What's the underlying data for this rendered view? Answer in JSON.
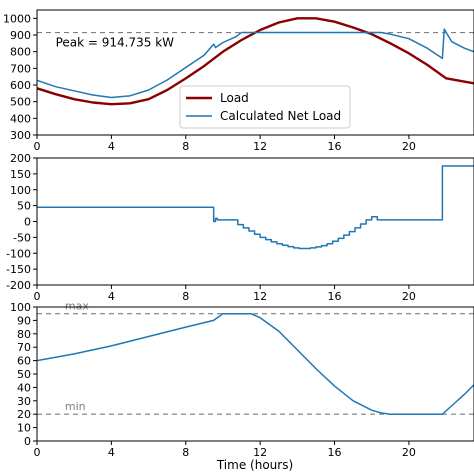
{
  "chart_data": [
    {
      "type": "line",
      "xlim": [
        0,
        23.5
      ],
      "ylim": [
        300,
        1050
      ],
      "xticks": [
        0,
        4,
        8,
        12,
        16,
        20
      ],
      "yticks": [
        300,
        400,
        500,
        600,
        700,
        800,
        900,
        1000
      ],
      "xlabel": "",
      "ylabel": "",
      "grid": false,
      "legend_position": "center-right",
      "reference_lines": [
        {
          "y": 914.735,
          "style": "dashed",
          "color": "#7f7f7f"
        }
      ],
      "annotations": [
        {
          "text": "Peak = 914.735 kW",
          "x": 1,
          "y": 855
        }
      ],
      "series": [
        {
          "name": "Load",
          "color": "#8b0000",
          "x": [
            0,
            1,
            2,
            3,
            4,
            5,
            6,
            7,
            8,
            9,
            10,
            11,
            12,
            13,
            14,
            15,
            16,
            17,
            18,
            19,
            20,
            21,
            22,
            23,
            23.5
          ],
          "y": [
            580,
            545,
            515,
            495,
            485,
            490,
            515,
            570,
            640,
            715,
            800,
            870,
            930,
            975,
            1000,
            1000,
            980,
            945,
            905,
            850,
            790,
            720,
            640,
            620,
            610
          ]
        },
        {
          "name": "Calculated Net Load",
          "color": "#1f77b4",
          "x": [
            0,
            1,
            2,
            3,
            4,
            5,
            6,
            7,
            8,
            9,
            9.5,
            9.6,
            10,
            10.7,
            11,
            12,
            13,
            14,
            15,
            16,
            17,
            18,
            18.5,
            19,
            20,
            21,
            21.8,
            21.9,
            22.3,
            23,
            23.5
          ],
          "y": [
            628,
            590,
            565,
            540,
            525,
            535,
            570,
            630,
            705,
            780,
            845,
            825,
            855,
            890,
            914.735,
            914.735,
            914.735,
            914.735,
            914.735,
            914.735,
            914.735,
            914.735,
            914.735,
            905,
            878,
            820,
            760,
            935,
            860,
            820,
            800
          ]
        }
      ]
    },
    {
      "type": "line",
      "xlim": [
        0,
        23.5
      ],
      "ylim": [
        -200,
        200
      ],
      "xticks": [
        0,
        4,
        8,
        12,
        16,
        20
      ],
      "yticks": [
        -200,
        -150,
        -100,
        -50,
        0,
        50,
        100,
        150,
        200
      ],
      "xlabel": "",
      "ylabel": "",
      "grid": false,
      "series": [
        {
          "name": "",
          "color": "#1f77b4",
          "x": [
            0,
            9.5,
            9.5,
            9.6,
            9.6,
            9.7,
            9.7,
            10.8,
            10.8,
            11.1,
            11.1,
            11.4,
            11.4,
            11.7,
            11.7,
            12.0,
            12.0,
            12.3,
            12.3,
            12.6,
            12.6,
            12.9,
            12.9,
            13.2,
            13.2,
            13.5,
            13.5,
            13.8,
            13.8,
            14.1,
            14.1,
            14.7,
            14.7,
            15.0,
            15.0,
            15.3,
            15.3,
            15.6,
            15.6,
            15.9,
            15.9,
            16.2,
            16.2,
            16.5,
            16.5,
            16.8,
            16.8,
            17.1,
            17.1,
            17.4,
            17.4,
            17.7,
            17.7,
            18.0,
            18.0,
            18.3,
            18.3,
            18.6,
            18.6,
            21.8,
            21.8,
            23.5
          ],
          "y": [
            45,
            45,
            0,
            0,
            10,
            10,
            5,
            5,
            -10,
            -10,
            -20,
            -20,
            -30,
            -30,
            -40,
            -40,
            -50,
            -50,
            -57,
            -57,
            -64,
            -64,
            -70,
            -70,
            -75,
            -75,
            -79,
            -79,
            -83,
            -83,
            -85,
            -85,
            -83,
            -83,
            -80,
            -80,
            -76,
            -76,
            -70,
            -70,
            -62,
            -62,
            -53,
            -53,
            -43,
            -43,
            -32,
            -32,
            -20,
            -20,
            -8,
            -8,
            5,
            5,
            15,
            15,
            5,
            5,
            5,
            5,
            175,
            175
          ]
        }
      ]
    },
    {
      "type": "line",
      "xlim": [
        0,
        23.5
      ],
      "ylim": [
        0,
        100
      ],
      "xticks": [
        0,
        4,
        8,
        12,
        16,
        20
      ],
      "yticks": [
        0,
        10,
        20,
        30,
        40,
        50,
        60,
        70,
        80,
        90,
        100
      ],
      "xlabel": "Time (hours)",
      "ylabel": "",
      "grid": false,
      "reference_lines": [
        {
          "y": 95,
          "label": "max",
          "style": "dashed",
          "color": "#7f7f7f"
        },
        {
          "y": 20,
          "label": "min",
          "style": "dashed",
          "color": "#7f7f7f"
        }
      ],
      "series": [
        {
          "name": "",
          "color": "#1f77b4",
          "x": [
            0,
            2,
            4,
            6,
            8,
            9.5,
            10,
            11,
            11.5,
            12,
            13,
            14,
            15,
            16,
            17,
            18,
            18.5,
            19,
            20,
            21,
            21.8,
            22.2,
            23,
            23.5
          ],
          "y": [
            60,
            65,
            71,
            78,
            85,
            90,
            95,
            95,
            95,
            92,
            82,
            68,
            54,
            41,
            30,
            23,
            21,
            20,
            20,
            20,
            20,
            25,
            35,
            42
          ]
        }
      ]
    }
  ]
}
